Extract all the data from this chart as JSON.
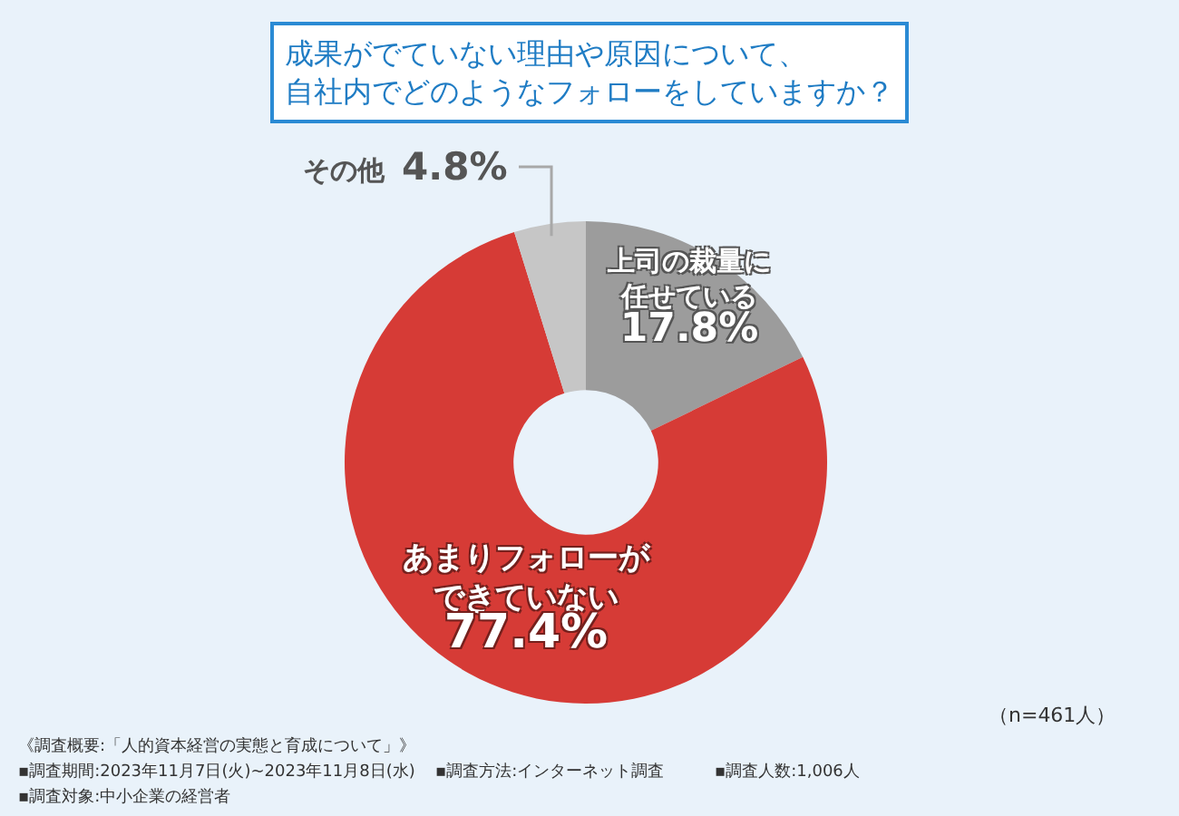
{
  "chart_data": {
    "type": "donut",
    "title": "成果がでていない理由や原因について、自社内でどのようなフォローをしていますか？",
    "categories": [
      "上司の裁量に任せている",
      "あまりフォローができていない",
      "その他"
    ],
    "values": [
      17.8,
      77.4,
      4.8
    ],
    "colors": [
      "#9c9c9c",
      "#d63b36",
      "#c6c6c6"
    ],
    "value_labels": [
      "17.8%",
      "77.4%",
      "4.8%"
    ],
    "annotations": [
      "（n=461人）",
      "《調査概要:「人的資本経営の実態と育成について」》",
      "▪調査期間:2023年11月7日(火)~2023年11月8日(水)",
      "▪調査対象:中小企業の経営者",
      "▪調査方法:インターネット調査",
      "▪調査人数:1,006人"
    ]
  }
}
